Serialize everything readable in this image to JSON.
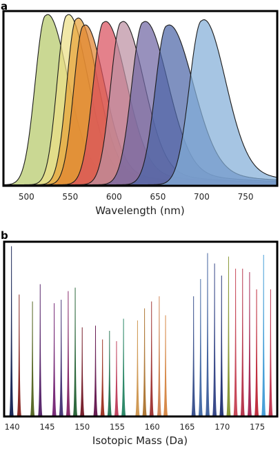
{
  "chart_data": [
    {
      "panel": "a",
      "type": "area",
      "xlabel": "Wavelength (nm)",
      "xlim": [
        475,
        785
      ],
      "ylim": [
        0,
        1.0
      ],
      "xticks": [
        500,
        550,
        600,
        650,
        700,
        750
      ],
      "grid": false,
      "series": [
        {
          "peak": 522,
          "width_left": 12,
          "width_right": 24,
          "height": 0.98,
          "color": "#b5c96a"
        },
        {
          "peak": 546,
          "width_left": 11,
          "width_right": 23,
          "height": 0.98,
          "color": "#ecdf86"
        },
        {
          "peak": 557,
          "width_left": 11,
          "width_right": 23,
          "height": 0.96,
          "color": "#e8a23a"
        },
        {
          "peak": 565,
          "width_left": 11,
          "width_right": 23,
          "height": 0.92,
          "color": "#e0842f"
        },
        {
          "peak": 588,
          "width_left": 12,
          "width_right": 25,
          "height": 0.94,
          "color": "#d9505e"
        },
        {
          "peak": 608,
          "width_left": 12,
          "width_right": 25,
          "height": 0.94,
          "color": "#bd90a2"
        },
        {
          "peak": 633,
          "width_left": 13,
          "width_right": 27,
          "height": 0.94,
          "color": "#7066a3"
        },
        {
          "peak": 660,
          "width_left": 13,
          "width_right": 29,
          "height": 0.92,
          "color": "#4d67a8"
        },
        {
          "peak": 700,
          "width_left": 14,
          "width_right": 26,
          "height": 0.95,
          "color": "#84afd8"
        }
      ]
    },
    {
      "panel": "b",
      "type": "bar",
      "xlabel": "Isotopic Mass (Da)",
      "xlim": [
        139,
        177.7
      ],
      "ylim": [
        0,
        1.0
      ],
      "xticks": [
        140,
        145,
        150,
        155,
        160,
        165,
        170,
        175
      ],
      "grid": false,
      "values": [
        {
          "x": 139.9,
          "y": 0.98,
          "color": "#1d2a5a"
        },
        {
          "x": 141.0,
          "y": 0.7,
          "color": "#8b2e2a"
        },
        {
          "x": 142.9,
          "y": 0.66,
          "color": "#5a6b2a"
        },
        {
          "x": 144.0,
          "y": 0.76,
          "color": "#5b2a6e"
        },
        {
          "x": 146.0,
          "y": 0.65,
          "color": "#7a2e7a"
        },
        {
          "x": 147.0,
          "y": 0.67,
          "color": "#4b3a7a"
        },
        {
          "x": 148.0,
          "y": 0.72,
          "color": "#8a2f6e"
        },
        {
          "x": 149.0,
          "y": 0.74,
          "color": "#2f6a3e"
        },
        {
          "x": 150.0,
          "y": 0.51,
          "color": "#7a2430"
        },
        {
          "x": 151.9,
          "y": 0.52,
          "color": "#6a1f55"
        },
        {
          "x": 152.9,
          "y": 0.44,
          "color": "#a03a2a"
        },
        {
          "x": 153.9,
          "y": 0.49,
          "color": "#2f7a5a"
        },
        {
          "x": 154.9,
          "y": 0.43,
          "color": "#c04560"
        },
        {
          "x": 155.9,
          "y": 0.56,
          "color": "#2f8a6a"
        },
        {
          "x": 157.9,
          "y": 0.55,
          "color": "#d09a55"
        },
        {
          "x": 158.9,
          "y": 0.62,
          "color": "#b07a3a"
        },
        {
          "x": 159.9,
          "y": 0.66,
          "color": "#a23a3a"
        },
        {
          "x": 161.0,
          "y": 0.69,
          "color": "#d0885a"
        },
        {
          "x": 161.9,
          "y": 0.58,
          "color": "#d78a4a"
        },
        {
          "x": 165.9,
          "y": 0.69,
          "color": "#3e5590"
        },
        {
          "x": 166.9,
          "y": 0.79,
          "color": "#4a6fa8"
        },
        {
          "x": 167.9,
          "y": 0.94,
          "color": "#4565a0"
        },
        {
          "x": 168.9,
          "y": 0.88,
          "color": "#3a4a8a"
        },
        {
          "x": 169.9,
          "y": 0.81,
          "color": "#2a3a7a"
        },
        {
          "x": 170.9,
          "y": 0.92,
          "color": "#8a9a3a"
        },
        {
          "x": 171.9,
          "y": 0.85,
          "color": "#c84a5a"
        },
        {
          "x": 172.9,
          "y": 0.85,
          "color": "#b83a50"
        },
        {
          "x": 173.9,
          "y": 0.83,
          "color": "#a8305a"
        },
        {
          "x": 174.9,
          "y": 0.73,
          "color": "#c03040"
        },
        {
          "x": 175.9,
          "y": 0.93,
          "color": "#4aa0d8"
        },
        {
          "x": 176.9,
          "y": 0.73,
          "color": "#c03a55"
        }
      ]
    }
  ]
}
